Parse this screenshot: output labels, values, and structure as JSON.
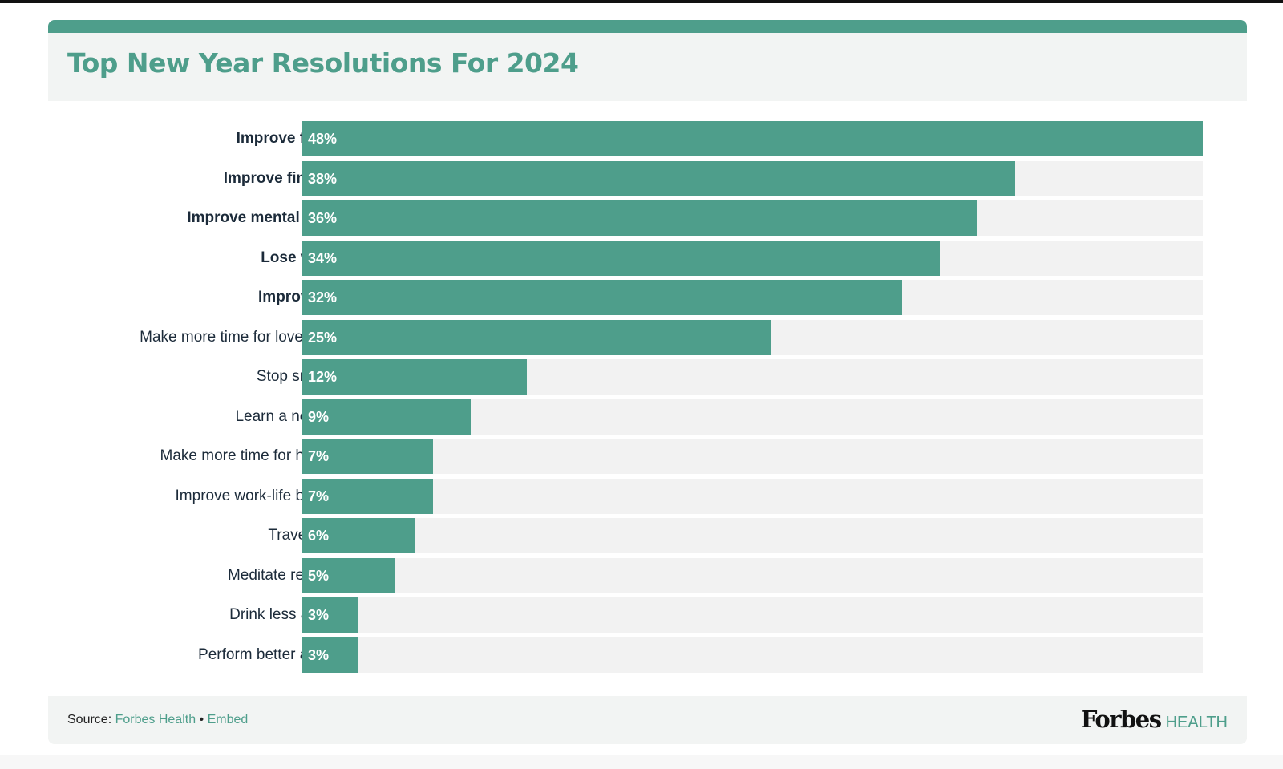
{
  "header": {
    "title": "Top New Year Resolutions For 2024"
  },
  "chart_data": {
    "type": "bar",
    "orientation": "horizontal",
    "title": "Top New Year Resolutions For 2024",
    "xlim": [
      0,
      48
    ],
    "categories": [
      "Improve fitness",
      "Improve finances",
      "Improve mental health",
      "Lose weight",
      "Improve diet",
      "Make more time for loved ones",
      "Stop smoking",
      "Learn a new skill",
      "Make more time for hobbies",
      "Improve work-life balance",
      "Travel more",
      "Meditate regularly",
      "Drink less alcohol",
      "Perform better at work"
    ],
    "values": [
      48,
      38,
      36,
      34,
      32,
      25,
      12,
      9,
      7,
      7,
      6,
      5,
      3,
      3
    ],
    "labels": [
      "48%",
      "38%",
      "36%",
      "34%",
      "32%",
      "25%",
      "12%",
      "9%",
      "7%",
      "7%",
      "6%",
      "5%",
      "3%",
      "3%"
    ],
    "bold": [
      true,
      true,
      true,
      true,
      true,
      false,
      false,
      false,
      false,
      false,
      false,
      false,
      false,
      false
    ],
    "colors": {
      "bar": "#4e9e8b",
      "track": "#f2f2f2",
      "accent": "#4e9e8b"
    }
  },
  "footer": {
    "source_label": "Source:",
    "source_link": "Forbes Health",
    "separator": "•",
    "embed_link": "Embed",
    "brand_name": "Forbes",
    "brand_sub": "HEALTH"
  }
}
